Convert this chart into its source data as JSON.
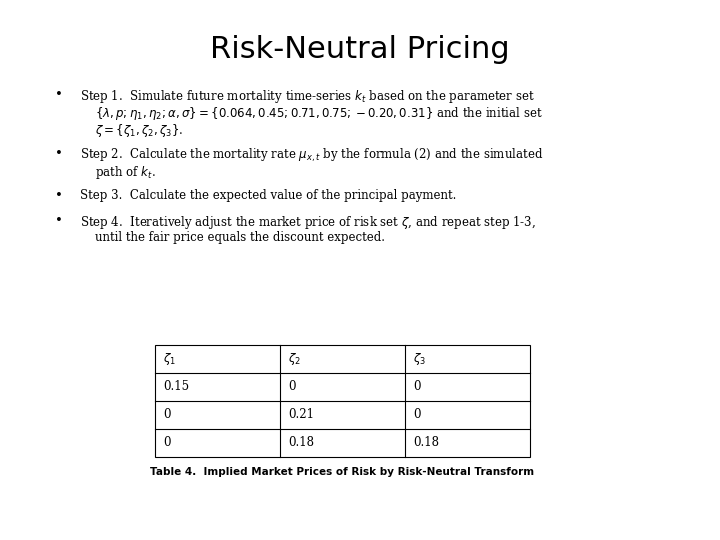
{
  "title": "Risk-Neutral Pricing",
  "title_fontsize": 22,
  "background_color": "#ffffff",
  "body_fontsize": 8.5,
  "table_headers": [
    "$\\zeta_1$",
    "$\\zeta_2$",
    "$\\zeta_3$"
  ],
  "table_data": [
    [
      "0.15",
      "0",
      "0"
    ],
    [
      "0",
      "0.21",
      "0"
    ],
    [
      "0",
      "0.18",
      "0.18"
    ]
  ],
  "table_caption": "Table 4.  Implied Market Prices of Risk by Risk-Neutral Transform",
  "caption_fontsize": 7.5
}
